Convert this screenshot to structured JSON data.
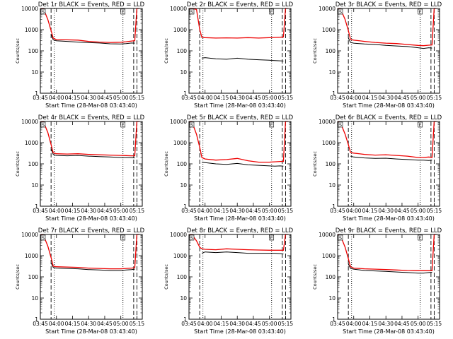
{
  "chart_data": [
    {
      "type": "line",
      "title": "Det 1r BLACK = Events, RED = LLD",
      "xlabel": "Start Time (28-Mar-08 03:43:40)",
      "ylabel": "Counts/sec",
      "y_scale": "log",
      "ylim": [
        1,
        10000
      ],
      "yticks": [
        "1",
        "10",
        "100",
        "1000",
        "10000"
      ],
      "xlim": [
        "03:45",
        "05:20"
      ],
      "xticks": [
        "03:45",
        "04:00",
        "04:15",
        "04:30",
        "04:45",
        "05:00",
        "05:15"
      ],
      "markers": [
        "S",
        "E"
      ],
      "series": [
        {
          "color": "#000000",
          "x": [
            "03:55",
            "03:57",
            "04:00",
            "04:10",
            "04:20",
            "04:30",
            "04:40",
            "04:50",
            "05:00",
            "05:05",
            "05:10",
            "05:13"
          ],
          "values": [
            600,
            330,
            300,
            280,
            260,
            245,
            235,
            215,
            210,
            220,
            235,
            230
          ]
        },
        {
          "color": "#ee0000",
          "x": [
            "03:45",
            "03:48",
            "03:52",
            "03:55",
            "03:57",
            "04:00",
            "04:10",
            "04:20",
            "04:30",
            "04:40",
            "04:50",
            "05:00",
            "05:05",
            "05:10",
            "05:13",
            "05:15",
            "05:17"
          ],
          "values": [
            10000,
            9500,
            3000,
            900,
            400,
            340,
            330,
            320,
            280,
            260,
            250,
            255,
            270,
            290,
            300,
            10000,
            10000
          ]
        }
      ]
    },
    {
      "type": "line",
      "title": "Det 2r BLACK = Events, RED = LLD",
      "xlabel": "Start Time (28-Mar-08 03:43:40)",
      "ylabel": "Counts/sec",
      "y_scale": "log",
      "ylim": [
        1,
        10000
      ],
      "yticks": [
        "1",
        "10",
        "100",
        "1000",
        "10000"
      ],
      "xlim": [
        "03:45",
        "05:20"
      ],
      "xticks": [
        "03:45",
        "04:00",
        "04:15",
        "04:30",
        "04:45",
        "05:00",
        "05:15"
      ],
      "markers": [
        "S",
        "E"
      ],
      "series": [
        {
          "color": "#000000",
          "x": [
            "03:57",
            "04:00",
            "04:10",
            "04:20",
            "04:30",
            "04:40",
            "04:50",
            "05:00",
            "05:05",
            "05:10",
            "05:13"
          ],
          "values": [
            45,
            48,
            42,
            40,
            45,
            40,
            38,
            36,
            35,
            34,
            33
          ]
        },
        {
          "color": "#ee0000",
          "x": [
            "03:45",
            "03:48",
            "03:52",
            "03:55",
            "03:57",
            "04:00",
            "04:10",
            "04:20",
            "04:30",
            "04:40",
            "04:50",
            "05:00",
            "05:05",
            "05:10",
            "05:13",
            "05:15",
            "05:17"
          ],
          "values": [
            10000,
            10000,
            9000,
            1000,
            430,
            420,
            400,
            410,
            400,
            420,
            400,
            420,
            430,
            440,
            450,
            10000,
            10000
          ]
        }
      ]
    },
    {
      "type": "line",
      "title": "Det 3r BLACK = Events, RED = LLD",
      "xlabel": "Start Time (28-Mar-08 03:43:40)",
      "ylabel": "Counts/sec",
      "y_scale": "log",
      "ylim": [
        1,
        10000
      ],
      "yticks": [
        "1",
        "10",
        "100",
        "1000",
        "10000"
      ],
      "xlim": [
        "03:45",
        "05:20"
      ],
      "xticks": [
        "03:45",
        "04:00",
        "04:15",
        "04:30",
        "04:45",
        "05:00",
        "05:15"
      ],
      "markers": [
        "S",
        "E"
      ],
      "series": [
        {
          "color": "#000000",
          "x": [
            "03:55",
            "03:57",
            "04:00",
            "04:10",
            "04:20",
            "04:30",
            "04:40",
            "04:50",
            "05:00",
            "05:05",
            "05:10",
            "05:13"
          ],
          "values": [
            400,
            250,
            230,
            210,
            200,
            180,
            170,
            160,
            140,
            130,
            140,
            135
          ]
        },
        {
          "color": "#ee0000",
          "x": [
            "03:45",
            "03:48",
            "03:52",
            "03:55",
            "03:57",
            "04:00",
            "04:10",
            "04:20",
            "04:30",
            "04:40",
            "04:50",
            "05:00",
            "05:05",
            "05:10",
            "05:13",
            "05:15",
            "05:17"
          ],
          "values": [
            10000,
            9000,
            3000,
            900,
            350,
            320,
            280,
            250,
            230,
            220,
            200,
            180,
            175,
            185,
            190,
            10000,
            10000
          ]
        }
      ]
    },
    {
      "type": "line",
      "title": "Det 4r BLACK = Events, RED = LLD",
      "xlabel": "Start Time (28-Mar-08 03:43:40)",
      "ylabel": "Counts/sec",
      "y_scale": "log",
      "ylim": [
        1,
        10000
      ],
      "yticks": [
        "1",
        "10",
        "100",
        "1000",
        "10000"
      ],
      "xlim": [
        "03:45",
        "05:20"
      ],
      "xticks": [
        "03:45",
        "04:00",
        "04:15",
        "04:30",
        "04:45",
        "05:00",
        "05:15"
      ],
      "markers": [
        "S",
        "E"
      ],
      "series": [
        {
          "color": "#000000",
          "x": [
            "03:55",
            "03:57",
            "04:00",
            "04:10",
            "04:20",
            "04:30",
            "04:40",
            "04:50",
            "05:00",
            "05:05",
            "05:10",
            "05:13"
          ],
          "values": [
            500,
            280,
            250,
            240,
            250,
            230,
            220,
            210,
            200,
            200,
            195,
            190
          ]
        },
        {
          "color": "#ee0000",
          "x": [
            "03:45",
            "03:48",
            "03:52",
            "03:55",
            "03:57",
            "04:00",
            "04:10",
            "04:20",
            "04:30",
            "04:40",
            "04:50",
            "05:00",
            "05:05",
            "05:10",
            "05:13",
            "05:15",
            "05:17"
          ],
          "values": [
            10000,
            9500,
            3000,
            800,
            330,
            300,
            290,
            300,
            280,
            270,
            260,
            250,
            245,
            240,
            240,
            10000,
            10000
          ]
        }
      ]
    },
    {
      "type": "line",
      "title": "Det 5r BLACK = Events, RED = LLD",
      "xlabel": "Start Time (28-Mar-08 03:43:40)",
      "ylabel": "Counts/sec",
      "y_scale": "log",
      "ylim": [
        1,
        10000
      ],
      "yticks": [
        "1",
        "10",
        "100",
        "1000",
        "10000"
      ],
      "xlim": [
        "03:45",
        "05:20"
      ],
      "xticks": [
        "03:45",
        "04:00",
        "04:15",
        "04:30",
        "04:45",
        "05:00",
        "05:15"
      ],
      "markers": [
        "S",
        "E"
      ],
      "series": [
        {
          "color": "#000000",
          "x": [
            "03:57",
            "04:00",
            "04:10",
            "04:20",
            "04:30",
            "04:40",
            "04:50",
            "05:00",
            "05:05",
            "05:10",
            "05:13"
          ],
          "values": [
            120,
            115,
            100,
            95,
            105,
            90,
            85,
            80,
            78,
            80,
            78
          ]
        },
        {
          "color": "#ee0000",
          "x": [
            "03:45",
            "03:48",
            "03:52",
            "03:55",
            "03:57",
            "04:00",
            "04:10",
            "04:20",
            "04:30",
            "04:40",
            "04:50",
            "05:00",
            "05:05",
            "05:10",
            "05:13",
            "05:15",
            "05:17"
          ],
          "values": [
            10000,
            9000,
            2500,
            600,
            200,
            170,
            150,
            160,
            180,
            140,
            120,
            120,
            125,
            130,
            130,
            10000,
            10000
          ]
        }
      ]
    },
    {
      "type": "line",
      "title": "Det 6r BLACK = Events, RED = LLD",
      "xlabel": "Start Time (28-Mar-08 03:43:40)",
      "ylabel": "Counts/sec",
      "y_scale": "log",
      "ylim": [
        1,
        10000
      ],
      "yticks": [
        "1",
        "10",
        "100",
        "1000",
        "10000"
      ],
      "xlim": [
        "03:45",
        "05:20"
      ],
      "xticks": [
        "03:45",
        "04:00",
        "04:15",
        "04:30",
        "04:45",
        "05:00",
        "05:15"
      ],
      "markers": [
        "S",
        "E"
      ],
      "series": [
        {
          "color": "#000000",
          "x": [
            "03:57",
            "04:00",
            "04:10",
            "04:20",
            "04:30",
            "04:40",
            "04:50",
            "05:00",
            "05:05",
            "05:10",
            "05:13"
          ],
          "values": [
            230,
            210,
            190,
            180,
            185,
            170,
            160,
            150,
            150,
            145,
            150
          ]
        },
        {
          "color": "#ee0000",
          "x": [
            "03:45",
            "03:48",
            "03:52",
            "03:55",
            "03:57",
            "04:00",
            "04:10",
            "04:20",
            "04:30",
            "04:40",
            "04:50",
            "05:00",
            "05:05",
            "05:10",
            "05:13",
            "05:15",
            "05:17"
          ],
          "values": [
            10000,
            8000,
            2500,
            800,
            350,
            320,
            280,
            260,
            270,
            250,
            230,
            200,
            200,
            210,
            200,
            10000,
            10000
          ]
        }
      ]
    },
    {
      "type": "line",
      "title": "Det 7r BLACK = Events, RED = LLD",
      "xlabel": "Start Time (28-Mar-08 03:43:40)",
      "ylabel": "Counts/sec",
      "y_scale": "log",
      "ylim": [
        1,
        10000
      ],
      "yticks": [
        "1",
        "10",
        "100",
        "1000",
        "10000"
      ],
      "xlim": [
        "03:45",
        "05:20"
      ],
      "xticks": [
        "03:45",
        "04:00",
        "04:15",
        "04:30",
        "04:45",
        "05:00",
        "05:15"
      ],
      "markers": [
        "S",
        "E"
      ],
      "series": [
        {
          "color": "#000000",
          "x": [
            "03:55",
            "03:57",
            "04:00",
            "04:10",
            "04:20",
            "04:30",
            "04:40",
            "04:50",
            "05:00",
            "05:05",
            "05:10",
            "05:13"
          ],
          "values": [
            450,
            280,
            260,
            250,
            240,
            220,
            210,
            200,
            200,
            210,
            220,
            230
          ]
        },
        {
          "color": "#ee0000",
          "x": [
            "03:45",
            "03:48",
            "03:52",
            "03:55",
            "03:57",
            "04:00",
            "04:10",
            "04:20",
            "04:30",
            "04:40",
            "04:50",
            "05:00",
            "05:05",
            "05:10",
            "05:13",
            "05:15",
            "05:17"
          ],
          "values": [
            10000,
            9000,
            2800,
            800,
            320,
            300,
            290,
            280,
            260,
            250,
            240,
            240,
            250,
            260,
            270,
            10000,
            10000
          ]
        }
      ]
    },
    {
      "type": "line",
      "title": "Det 8r BLACK = Events, RED = LLD",
      "xlabel": "Start Time (28-Mar-08 03:43:40)",
      "ylabel": "Counts/sec",
      "y_scale": "log",
      "ylim": [
        1,
        10000
      ],
      "yticks": [
        "1",
        "10",
        "100",
        "1000",
        "10000"
      ],
      "xlim": [
        "03:45",
        "05:20"
      ],
      "xticks": [
        "03:45",
        "04:00",
        "04:15",
        "04:30",
        "04:45",
        "05:00",
        "05:15"
      ],
      "markers": [
        "S",
        "E"
      ],
      "series": [
        {
          "color": "#000000",
          "x": [
            "03:57",
            "04:00",
            "04:10",
            "04:20",
            "04:30",
            "04:40",
            "04:50",
            "05:00",
            "05:05",
            "05:10",
            "05:13"
          ],
          "values": [
            1300,
            1500,
            1400,
            1500,
            1400,
            1300,
            1300,
            1300,
            1300,
            1250,
            1200
          ]
        },
        {
          "color": "#ee0000",
          "x": [
            "03:45",
            "03:48",
            "03:52",
            "03:55",
            "03:57",
            "04:00",
            "04:10",
            "04:20",
            "04:30",
            "04:40",
            "04:50",
            "05:00",
            "05:05",
            "05:10",
            "05:13",
            "05:15",
            "05:17"
          ],
          "values": [
            10000,
            9500,
            5000,
            2500,
            2100,
            2000,
            1900,
            2100,
            2000,
            1900,
            1850,
            1800,
            1800,
            1800,
            1800,
            10000,
            10000
          ]
        }
      ]
    },
    {
      "type": "line",
      "title": "Det 9r BLACK = Events, RED = LLD",
      "xlabel": "Start Time (28-Mar-08 03:43:40)",
      "ylabel": "Counts/sec",
      "y_scale": "log",
      "ylim": [
        1,
        10000
      ],
      "yticks": [
        "1",
        "10",
        "100",
        "1000",
        "10000"
      ],
      "xlim": [
        "03:45",
        "05:20"
      ],
      "xticks": [
        "03:45",
        "04:00",
        "04:15",
        "04:30",
        "04:45",
        "05:00",
        "05:15"
      ],
      "markers": [
        "S",
        "E"
      ],
      "series": [
        {
          "color": "#000000",
          "x": [
            "03:55",
            "03:57",
            "04:00",
            "04:10",
            "04:20",
            "04:30",
            "04:40",
            "04:50",
            "05:00",
            "05:05",
            "05:10",
            "05:13"
          ],
          "values": [
            400,
            250,
            230,
            200,
            190,
            180,
            170,
            160,
            150,
            150,
            160,
            165
          ]
        },
        {
          "color": "#ee0000",
          "x": [
            "03:45",
            "03:48",
            "03:52",
            "03:55",
            "03:57",
            "04:00",
            "04:10",
            "04:20",
            "04:30",
            "04:40",
            "04:50",
            "05:00",
            "05:05",
            "05:10",
            "05:13",
            "05:15",
            "05:17"
          ],
          "values": [
            10000,
            8000,
            2500,
            700,
            300,
            260,
            240,
            230,
            220,
            210,
            200,
            195,
            195,
            195,
            195,
            10000,
            10000
          ]
        }
      ]
    }
  ]
}
